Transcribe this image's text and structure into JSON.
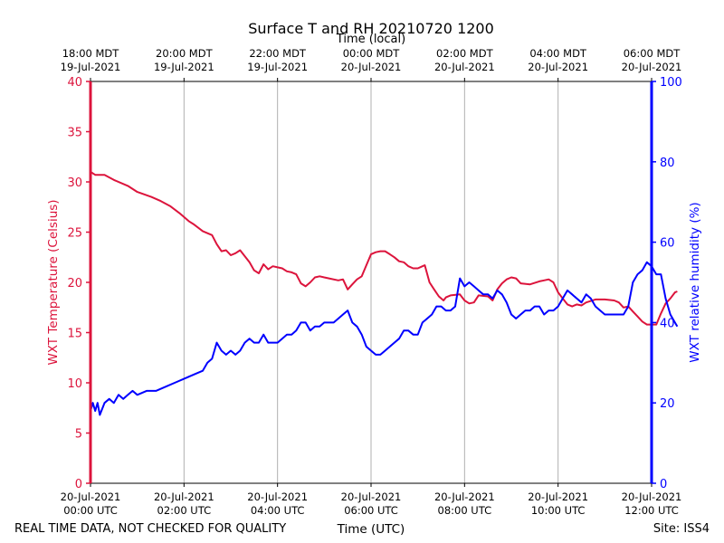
{
  "chart_data": {
    "type": "line",
    "title": "Surface T and RH 20210720 1200",
    "xlabel": "Time (UTC)",
    "xlabel_top": "Time (local)",
    "ylabel_left": "WXT Temperature (Celsius)",
    "ylabel_right": "WXT relative humidity (%)",
    "xlim_hours": [
      0,
      12
    ],
    "ylim_left": [
      0,
      40
    ],
    "ylim_right": [
      0,
      100
    ],
    "yticks_left": [
      "0",
      "5",
      "10",
      "15",
      "20",
      "25",
      "30",
      "35",
      "40"
    ],
    "yticks_right": [
      "0",
      "20",
      "40",
      "60",
      "80",
      "100"
    ],
    "x_ticks_bottom": [
      {
        "hour": 0,
        "date": "20-Jul-2021",
        "time": "00:00 UTC"
      },
      {
        "hour": 2,
        "date": "20-Jul-2021",
        "time": "02:00 UTC"
      },
      {
        "hour": 4,
        "date": "20-Jul-2021",
        "time": "04:00 UTC"
      },
      {
        "hour": 6,
        "date": "20-Jul-2021",
        "time": "06:00 UTC"
      },
      {
        "hour": 8,
        "date": "20-Jul-2021",
        "time": "08:00 UTC"
      },
      {
        "hour": 10,
        "date": "20-Jul-2021",
        "time": "10:00 UTC"
      },
      {
        "hour": 12,
        "date": "20-Jul-2021",
        "time": "12:00 UTC"
      }
    ],
    "x_ticks_top": [
      {
        "hour": 0,
        "time": "18:00 MDT",
        "date": "19-Jul-2021"
      },
      {
        "hour": 2,
        "time": "20:00 MDT",
        "date": "19-Jul-2021"
      },
      {
        "hour": 4,
        "time": "22:00 MDT",
        "date": "19-Jul-2021"
      },
      {
        "hour": 6,
        "time": "00:00 MDT",
        "date": "20-Jul-2021"
      },
      {
        "hour": 8,
        "time": "02:00 MDT",
        "date": "20-Jul-2021"
      },
      {
        "hour": 10,
        "time": "04:00 MDT",
        "date": "20-Jul-2021"
      },
      {
        "hour": 12,
        "time": "06:00 MDT",
        "date": "20-Jul-2021"
      }
    ],
    "grid": "vertical",
    "series": [
      {
        "name": "WXT Temperature",
        "axis": "left",
        "color": "#dc143c",
        "points": [
          [
            0.0,
            31.0
          ],
          [
            0.1,
            30.7
          ],
          [
            0.3,
            30.7
          ],
          [
            0.5,
            30.2
          ],
          [
            0.8,
            29.6
          ],
          [
            1.0,
            29.0
          ],
          [
            1.3,
            28.5
          ],
          [
            1.5,
            28.1
          ],
          [
            1.7,
            27.6
          ],
          [
            1.9,
            26.9
          ],
          [
            2.1,
            26.1
          ],
          [
            2.2,
            25.8
          ],
          [
            2.4,
            25.1
          ],
          [
            2.6,
            24.7
          ],
          [
            2.7,
            23.8
          ],
          [
            2.8,
            23.1
          ],
          [
            2.9,
            23.2
          ],
          [
            3.0,
            22.7
          ],
          [
            3.1,
            22.9
          ],
          [
            3.2,
            23.2
          ],
          [
            3.3,
            22.6
          ],
          [
            3.4,
            22.0
          ],
          [
            3.5,
            21.2
          ],
          [
            3.6,
            20.9
          ],
          [
            3.7,
            21.8
          ],
          [
            3.8,
            21.3
          ],
          [
            3.9,
            21.6
          ],
          [
            4.0,
            21.5
          ],
          [
            4.1,
            21.4
          ],
          [
            4.2,
            21.1
          ],
          [
            4.3,
            21.0
          ],
          [
            4.4,
            20.8
          ],
          [
            4.5,
            19.9
          ],
          [
            4.6,
            19.6
          ],
          [
            4.7,
            20.0
          ],
          [
            4.8,
            20.5
          ],
          [
            4.9,
            20.6
          ],
          [
            5.0,
            20.5
          ],
          [
            5.1,
            20.4
          ],
          [
            5.3,
            20.2
          ],
          [
            5.4,
            20.3
          ],
          [
            5.5,
            19.3
          ],
          [
            5.6,
            19.8
          ],
          [
            5.7,
            20.3
          ],
          [
            5.8,
            20.6
          ],
          [
            5.9,
            21.7
          ],
          [
            6.0,
            22.8
          ],
          [
            6.1,
            23.0
          ],
          [
            6.2,
            23.1
          ],
          [
            6.3,
            23.1
          ],
          [
            6.4,
            22.8
          ],
          [
            6.5,
            22.5
          ],
          [
            6.6,
            22.1
          ],
          [
            6.7,
            22.0
          ],
          [
            6.8,
            21.6
          ],
          [
            6.9,
            21.4
          ],
          [
            7.0,
            21.4
          ],
          [
            7.1,
            21.6
          ],
          [
            7.15,
            21.7
          ],
          [
            7.25,
            20.0
          ],
          [
            7.35,
            19.3
          ],
          [
            7.45,
            18.6
          ],
          [
            7.55,
            18.2
          ],
          [
            7.6,
            18.5
          ],
          [
            7.7,
            18.7
          ],
          [
            7.9,
            18.8
          ],
          [
            8.0,
            18.2
          ],
          [
            8.1,
            17.9
          ],
          [
            8.2,
            18.0
          ],
          [
            8.3,
            18.7
          ],
          [
            8.5,
            18.6
          ],
          [
            8.6,
            18.2
          ],
          [
            8.7,
            19.3
          ],
          [
            8.8,
            19.9
          ],
          [
            8.9,
            20.3
          ],
          [
            9.0,
            20.5
          ],
          [
            9.1,
            20.4
          ],
          [
            9.2,
            19.9
          ],
          [
            9.4,
            19.8
          ],
          [
            9.6,
            20.1
          ],
          [
            9.7,
            20.2
          ],
          [
            9.8,
            20.3
          ],
          [
            9.9,
            20.0
          ],
          [
            10.0,
            19.0
          ],
          [
            10.1,
            18.4
          ],
          [
            10.2,
            17.8
          ],
          [
            10.3,
            17.6
          ],
          [
            10.4,
            17.8
          ],
          [
            10.5,
            17.7
          ],
          [
            10.6,
            18.0
          ],
          [
            10.8,
            18.3
          ],
          [
            11.0,
            18.3
          ],
          [
            11.2,
            18.2
          ],
          [
            11.3,
            18.0
          ],
          [
            11.4,
            17.5
          ],
          [
            11.5,
            17.6
          ],
          [
            11.6,
            17.1
          ],
          [
            11.7,
            16.6
          ],
          [
            11.8,
            16.1
          ],
          [
            11.9,
            15.8
          ],
          [
            12.0,
            15.8
          ],
          [
            12.1,
            15.8
          ],
          [
            12.2,
            16.9
          ],
          [
            12.3,
            17.9
          ],
          [
            12.4,
            18.4
          ],
          [
            12.5,
            19.0
          ],
          [
            12.55,
            19.1
          ]
        ]
      },
      {
        "name": "WXT relative humidity",
        "axis": "right",
        "color": "#0000ff",
        "points": [
          [
            0.0,
            18
          ],
          [
            0.05,
            20
          ],
          [
            0.1,
            18
          ],
          [
            0.15,
            20
          ],
          [
            0.2,
            17
          ],
          [
            0.3,
            20
          ],
          [
            0.4,
            21
          ],
          [
            0.5,
            20
          ],
          [
            0.6,
            22
          ],
          [
            0.7,
            21
          ],
          [
            0.8,
            22
          ],
          [
            0.9,
            23
          ],
          [
            1.0,
            22
          ],
          [
            1.2,
            23
          ],
          [
            1.4,
            23
          ],
          [
            1.6,
            24
          ],
          [
            1.8,
            25
          ],
          [
            2.0,
            26
          ],
          [
            2.2,
            27
          ],
          [
            2.4,
            28
          ],
          [
            2.5,
            30
          ],
          [
            2.6,
            31
          ],
          [
            2.7,
            35
          ],
          [
            2.8,
            33
          ],
          [
            2.9,
            32
          ],
          [
            3.0,
            33
          ],
          [
            3.1,
            32
          ],
          [
            3.2,
            33
          ],
          [
            3.3,
            35
          ],
          [
            3.4,
            36
          ],
          [
            3.5,
            35
          ],
          [
            3.6,
            35
          ],
          [
            3.7,
            37
          ],
          [
            3.8,
            35
          ],
          [
            3.9,
            35
          ],
          [
            4.0,
            35
          ],
          [
            4.1,
            36
          ],
          [
            4.2,
            37
          ],
          [
            4.3,
            37
          ],
          [
            4.4,
            38
          ],
          [
            4.5,
            40
          ],
          [
            4.6,
            40
          ],
          [
            4.7,
            38
          ],
          [
            4.8,
            39
          ],
          [
            4.9,
            39
          ],
          [
            5.0,
            40
          ],
          [
            5.1,
            40
          ],
          [
            5.2,
            40
          ],
          [
            5.3,
            41
          ],
          [
            5.4,
            42
          ],
          [
            5.5,
            43
          ],
          [
            5.6,
            40
          ],
          [
            5.7,
            39
          ],
          [
            5.8,
            37
          ],
          [
            5.9,
            34
          ],
          [
            6.0,
            33
          ],
          [
            6.1,
            32
          ],
          [
            6.2,
            32
          ],
          [
            6.3,
            33
          ],
          [
            6.4,
            34
          ],
          [
            6.5,
            35
          ],
          [
            6.6,
            36
          ],
          [
            6.7,
            38
          ],
          [
            6.8,
            38
          ],
          [
            6.9,
            37
          ],
          [
            7.0,
            37
          ],
          [
            7.1,
            40
          ],
          [
            7.2,
            41
          ],
          [
            7.3,
            42
          ],
          [
            7.4,
            44
          ],
          [
            7.5,
            44
          ],
          [
            7.6,
            43
          ],
          [
            7.7,
            43
          ],
          [
            7.8,
            44
          ],
          [
            7.9,
            51
          ],
          [
            8.0,
            49
          ],
          [
            8.1,
            50
          ],
          [
            8.2,
            49
          ],
          [
            8.3,
            48
          ],
          [
            8.4,
            47
          ],
          [
            8.5,
            47
          ],
          [
            8.6,
            46
          ],
          [
            8.7,
            48
          ],
          [
            8.8,
            47
          ],
          [
            8.9,
            45
          ],
          [
            9.0,
            42
          ],
          [
            9.1,
            41
          ],
          [
            9.2,
            42
          ],
          [
            9.3,
            43
          ],
          [
            9.4,
            43
          ],
          [
            9.5,
            44
          ],
          [
            9.6,
            44
          ],
          [
            9.7,
            42
          ],
          [
            9.8,
            43
          ],
          [
            9.9,
            43
          ],
          [
            10.0,
            44
          ],
          [
            10.1,
            46
          ],
          [
            10.2,
            48
          ],
          [
            10.3,
            47
          ],
          [
            10.4,
            46
          ],
          [
            10.5,
            45
          ],
          [
            10.6,
            47
          ],
          [
            10.7,
            46
          ],
          [
            10.8,
            44
          ],
          [
            10.9,
            43
          ],
          [
            11.0,
            42
          ],
          [
            11.2,
            42
          ],
          [
            11.4,
            42
          ],
          [
            11.5,
            44
          ],
          [
            11.6,
            50
          ],
          [
            11.7,
            52
          ],
          [
            11.8,
            53
          ],
          [
            11.9,
            55
          ],
          [
            12.0,
            54
          ],
          [
            12.1,
            52
          ],
          [
            12.2,
            52
          ],
          [
            12.3,
            46
          ],
          [
            12.4,
            42
          ],
          [
            12.5,
            40
          ],
          [
            12.55,
            39
          ]
        ]
      }
    ]
  },
  "footer": {
    "left_note": "REAL TIME DATA, NOT CHECKED FOR QUALITY",
    "site": "Site: ISS4"
  }
}
